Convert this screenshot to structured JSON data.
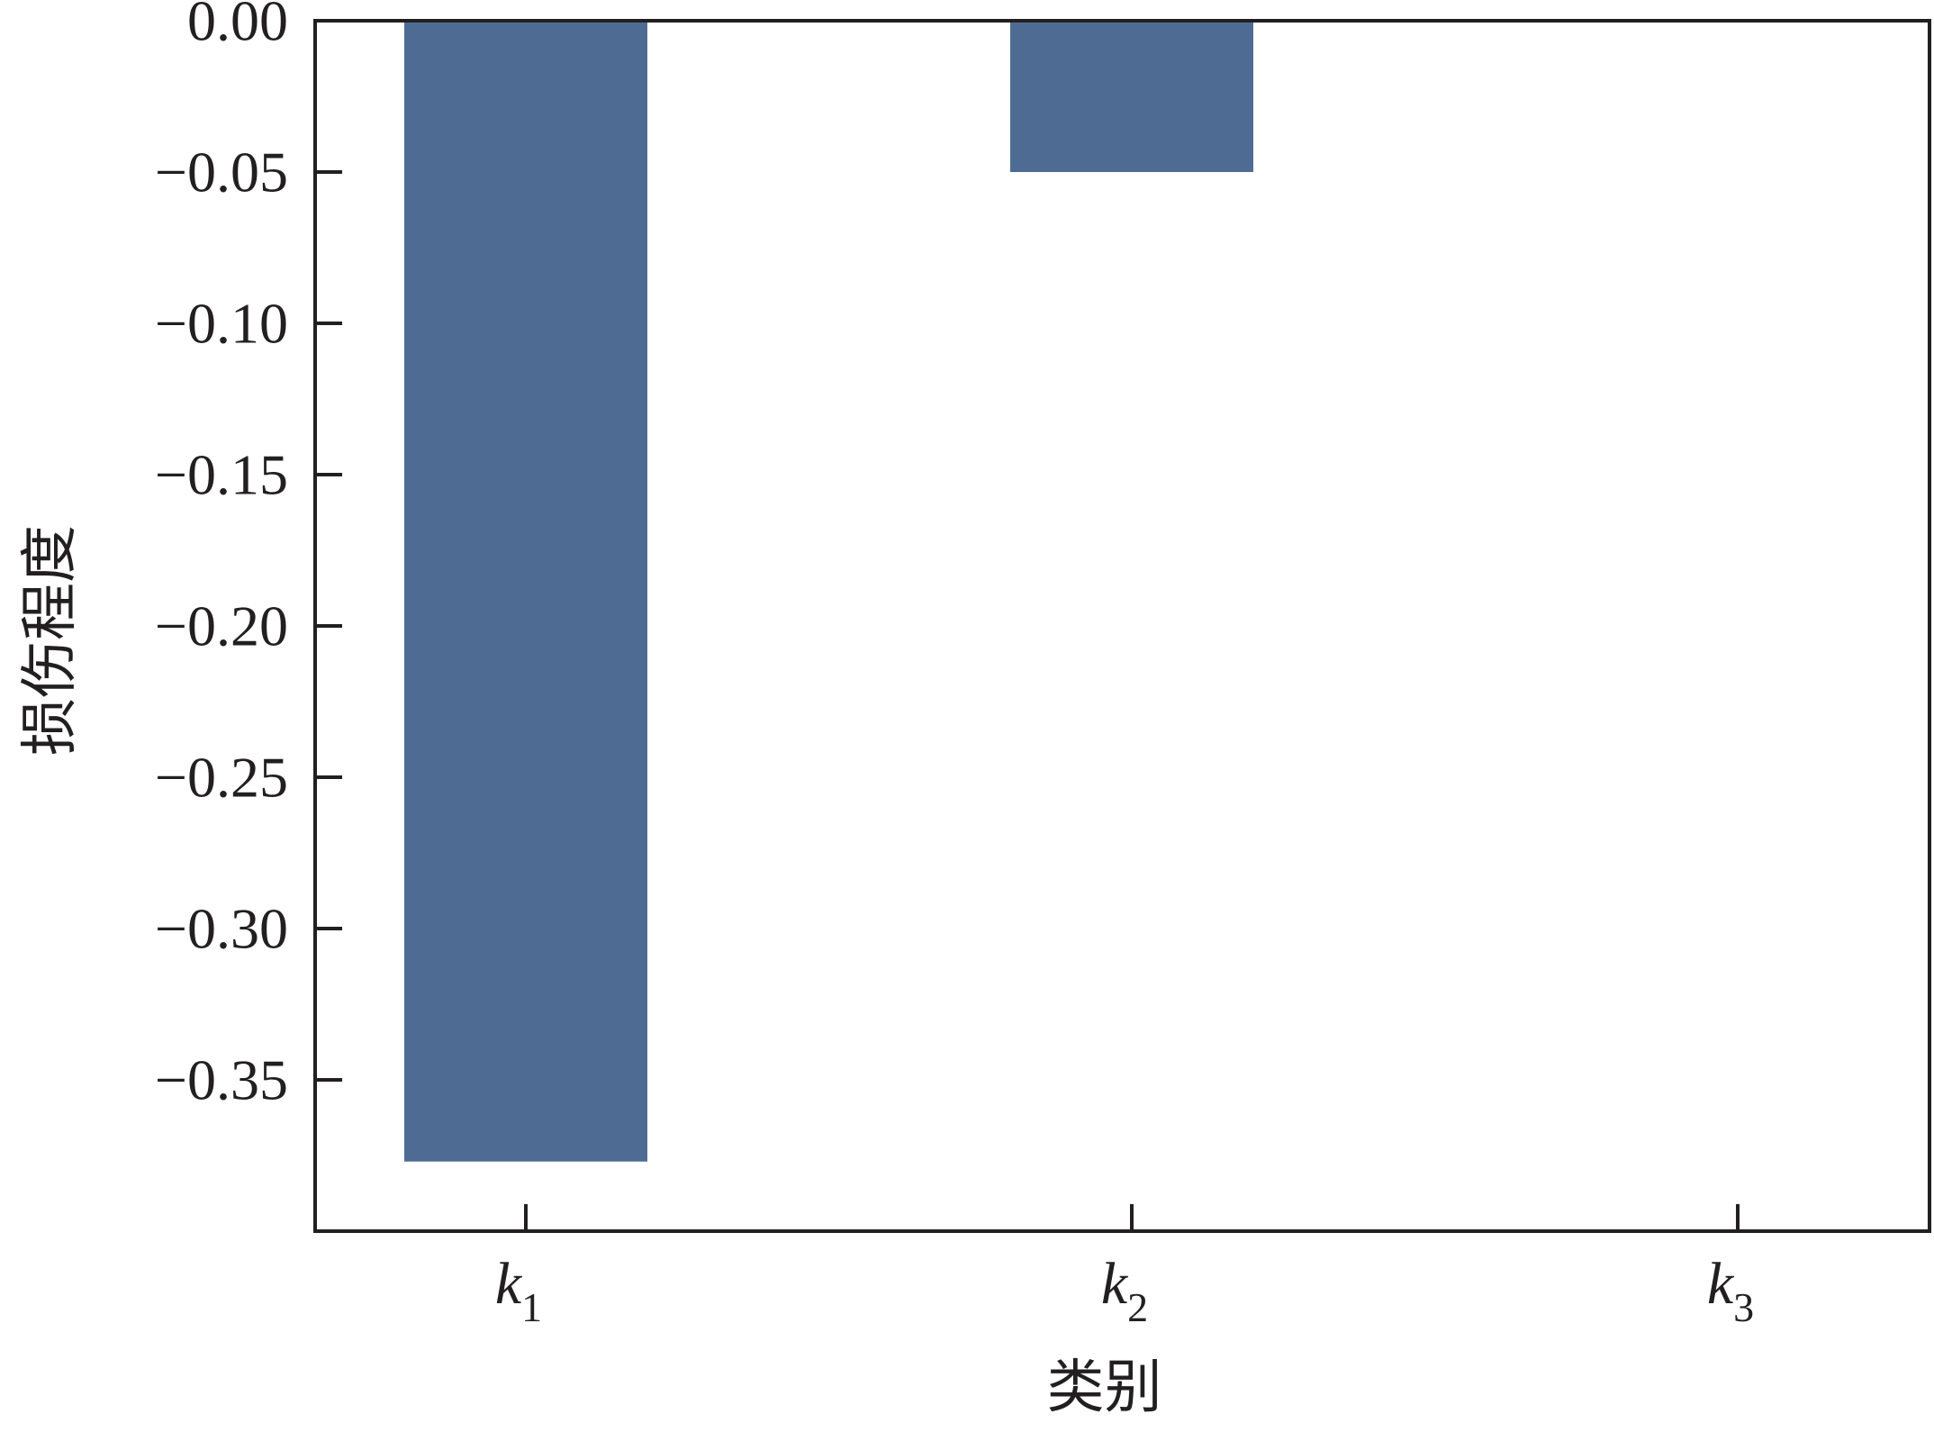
{
  "chart_data": {
    "type": "bar",
    "categories": [
      {
        "base": "k",
        "sub": "1"
      },
      {
        "base": "k",
        "sub": "2"
      },
      {
        "base": "k",
        "sub": "3"
      }
    ],
    "values": [
      -0.377,
      -0.05,
      0.0
    ],
    "xlabel": "类别",
    "ylabel": "损伤程度",
    "ylim": [
      -0.4,
      0.0
    ],
    "yticks": [
      0.0,
      -0.05,
      -0.1,
      -0.15,
      -0.2,
      -0.25,
      -0.3,
      -0.35
    ],
    "ytick_labels": [
      "0.00",
      "−0.05",
      "−0.10",
      "−0.15",
      "−0.20",
      "−0.25",
      "−0.30",
      "−0.35"
    ],
    "bar_color": "#4e6c93",
    "grid": false,
    "legend": "none"
  }
}
